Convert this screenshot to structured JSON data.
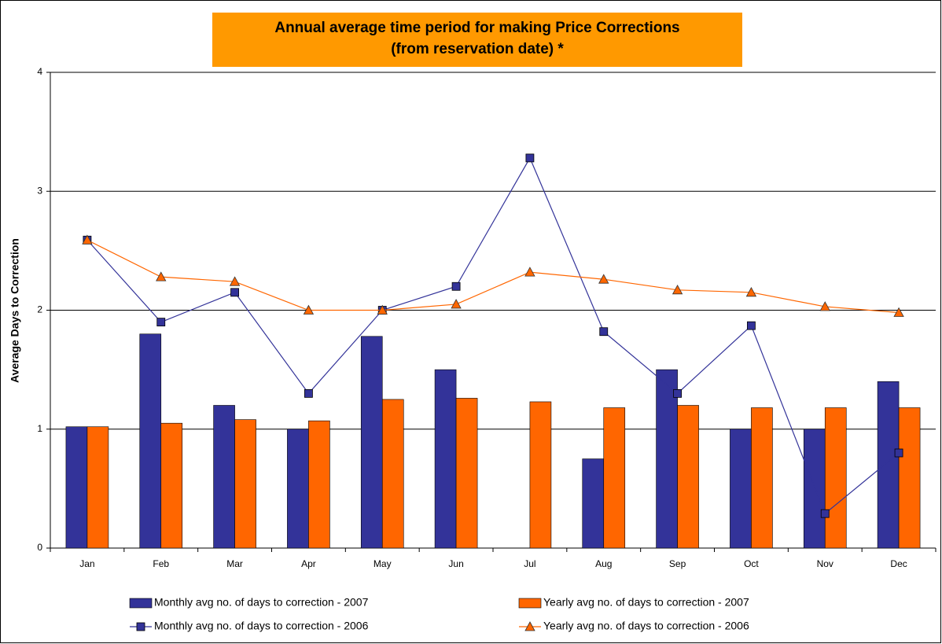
{
  "chart_data": {
    "type": "combo",
    "title": [
      "Annual average time period for making Price Corrections",
      "(from reservation date) *"
    ],
    "ylabel": "Average Days to Correction",
    "categories": [
      "Jan",
      "Feb",
      "Mar",
      "Apr",
      "May",
      "Jun",
      "Jul",
      "Aug",
      "Sep",
      "Oct",
      "Nov",
      "Dec"
    ],
    "ylim": [
      0,
      4
    ],
    "yticks": [
      0,
      1,
      2,
      3,
      4
    ],
    "grid": true,
    "series": [
      {
        "name": "Monthly avg no. of days to correction - 2007",
        "type": "bar",
        "color": "#333399",
        "values": [
          1.02,
          1.8,
          1.2,
          1.0,
          1.78,
          1.5,
          null,
          0.75,
          1.5,
          1.0,
          1.0,
          1.4
        ]
      },
      {
        "name": "Yearly avg no. of days to correction - 2007",
        "type": "bar",
        "color": "#ff6600",
        "values": [
          1.02,
          1.05,
          1.08,
          1.07,
          1.25,
          1.26,
          1.23,
          1.18,
          1.2,
          1.18,
          1.18,
          1.18
        ]
      },
      {
        "name": "Monthly avg no. of days to correction - 2006",
        "type": "line",
        "marker": "square",
        "color": "#333399",
        "values": [
          2.59,
          1.9,
          2.15,
          1.3,
          2.0,
          2.2,
          3.28,
          1.82,
          1.3,
          1.87,
          0.29,
          0.8
        ]
      },
      {
        "name": "Yearly avg no. of days to correction - 2006",
        "type": "line",
        "marker": "triangle",
        "color": "#ff6600",
        "values": [
          2.59,
          2.28,
          2.24,
          2.0,
          2.0,
          2.05,
          2.32,
          2.26,
          2.17,
          2.15,
          2.03,
          1.98
        ]
      }
    ]
  }
}
